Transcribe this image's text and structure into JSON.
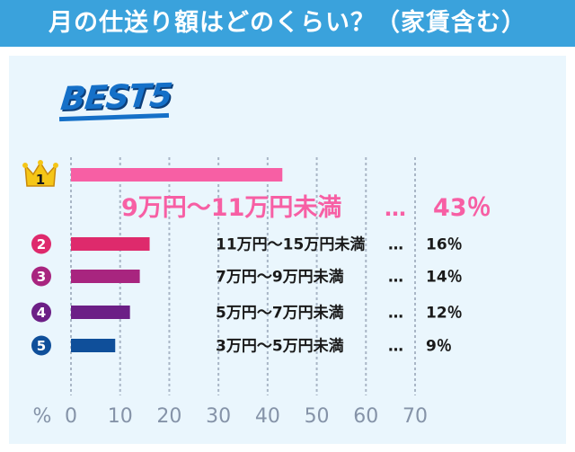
{
  "header": {
    "title": "月の仕送り額はどのくらい？（家賃含む）"
  },
  "badge": {
    "label": "BEST5"
  },
  "colors": {
    "header_bg": "#3aa2dc",
    "panel_bg": "#eaf6fd",
    "grid": "#a9b6c6",
    "rank1": "#f75fa4",
    "rank2": "#de2a6c",
    "rank3": "#a8257f",
    "rank4": "#6c1f86",
    "rank5": "#0f4f9a",
    "crown": "#f5c617"
  },
  "chart_data": {
    "type": "bar",
    "orientation": "horizontal",
    "title": "月の仕送り額はどのくらい？（家賃含む）",
    "xunit": "%",
    "xlim": [
      0,
      70
    ],
    "xticks": [
      "0",
      "10",
      "20",
      "30",
      "40",
      "50",
      "60",
      "70"
    ],
    "grid": true,
    "rows": [
      {
        "rank": "1",
        "category": "9万円～11万円未満",
        "sep": "…",
        "value": 43,
        "value_label": "43％",
        "color": "#f75fa4"
      },
      {
        "rank": "2",
        "category": "11万円～15万円未満",
        "sep": "…",
        "value": 16,
        "value_label": "16％",
        "color": "#de2a6c"
      },
      {
        "rank": "3",
        "category": "7万円～9万円未満",
        "sep": "…",
        "value": 14,
        "value_label": "14％",
        "color": "#a8257f"
      },
      {
        "rank": "4",
        "category": "5万円～7万円未満",
        "sep": "…",
        "value": 12,
        "value_label": "12％",
        "color": "#6c1f86"
      },
      {
        "rank": "5",
        "category": "3万円～5万円未満",
        "sep": "…",
        "value": 9,
        "value_label": "9％",
        "color": "#0f4f9a"
      }
    ]
  }
}
